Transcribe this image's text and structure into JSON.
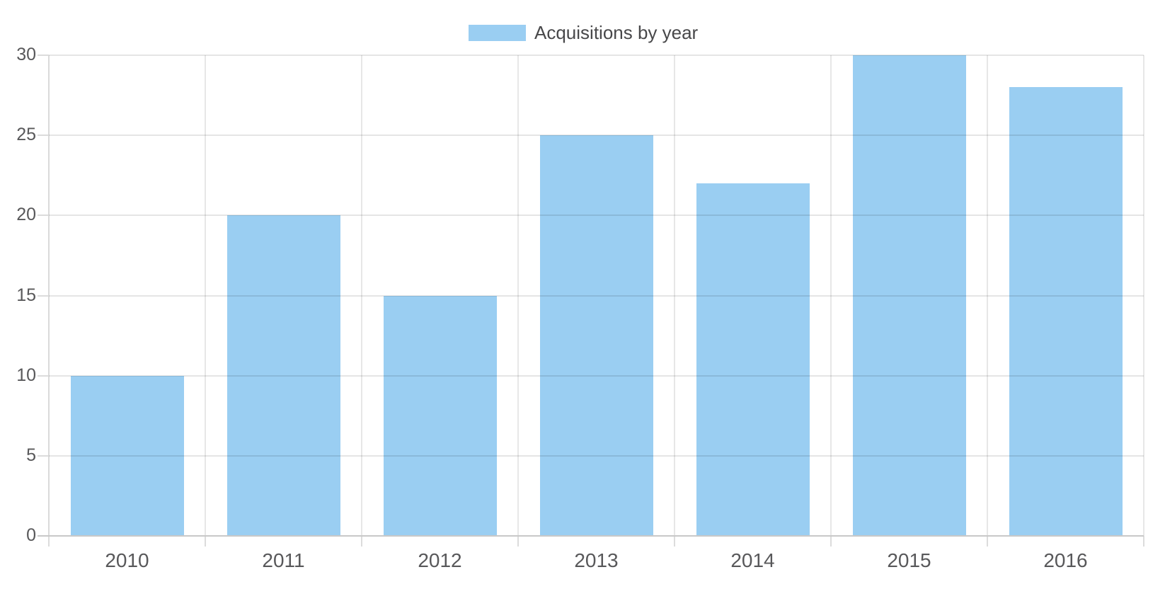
{
  "chart_data": {
    "type": "bar",
    "title": "",
    "categories": [
      "2010",
      "2011",
      "2012",
      "2013",
      "2014",
      "2015",
      "2016"
    ],
    "series": [
      {
        "name": "Acquisitions by year",
        "values": [
          10,
          20,
          15,
          25,
          22,
          30,
          28
        ]
      }
    ],
    "xlabel": "",
    "ylabel": "",
    "ylim": [
      0,
      30
    ],
    "yticks": [
      0,
      5,
      10,
      15,
      20,
      25,
      30
    ],
    "grid": true,
    "legend_position": "top-center",
    "bar_color": "#9ACEF2"
  },
  "legend": {
    "label": "Acquisitions by year",
    "swatch_color": "#9ACEF2"
  },
  "colors": {
    "bar": "#9ACEF2",
    "grid_overlay": "rgba(0,0,0,0.10)",
    "zero_axis": "#C8C8C8",
    "vertical_line": "#E7E7E7",
    "left_axis_line": "#DADADA",
    "tick_mark": "#DCDCDC",
    "axis_text": "#58585A",
    "legend_text": "#48484A"
  }
}
